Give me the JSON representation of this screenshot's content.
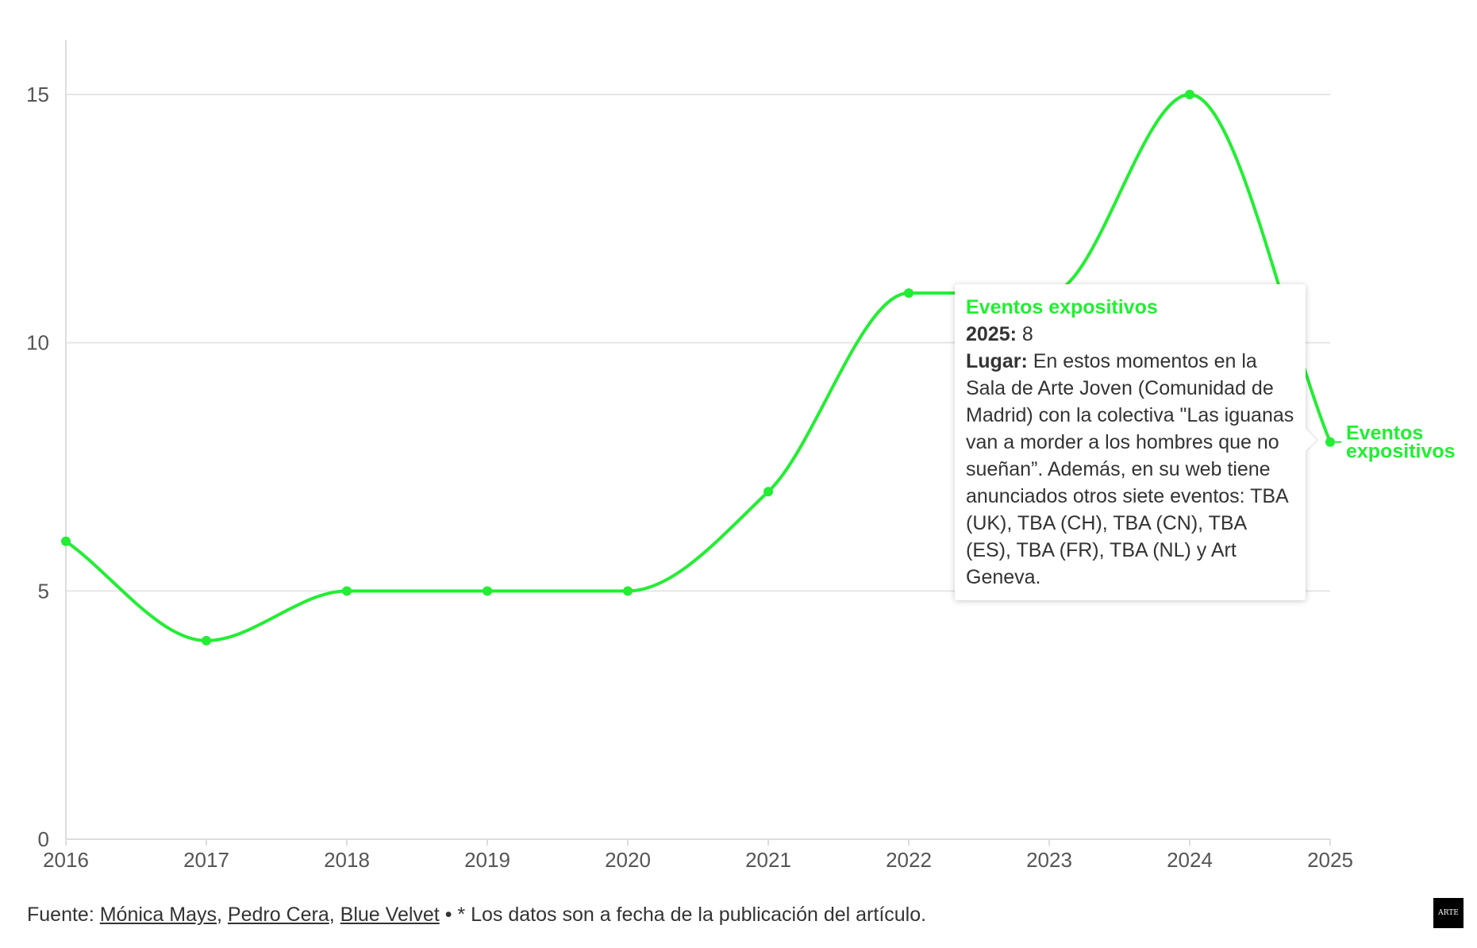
{
  "colors": {
    "series": "#22ee33",
    "grid": "#e6e6e6",
    "axis": "#dddddd",
    "text": "#333333",
    "tick_text": "#555555"
  },
  "chart_data": {
    "type": "line",
    "x": [
      "2016",
      "2017",
      "2018",
      "2019",
      "2020",
      "2021",
      "2022",
      "2023",
      "2024",
      "2025"
    ],
    "series": [
      {
        "name": "Eventos expositivos",
        "values": [
          6,
          4,
          5,
          5,
          5,
          7,
          11,
          11,
          15,
          8
        ]
      }
    ],
    "y_ticks": [
      0,
      5,
      10,
      15
    ],
    "ylim": [
      0,
      16
    ],
    "grid": true,
    "smooth": true,
    "series_label_lines": [
      "Eventos",
      "expositivos"
    ]
  },
  "tooltip": {
    "title": "Eventos expositivos",
    "year_label": "2025:",
    "year_value": "8",
    "lugar_label": "Lugar:",
    "lugar_text": "En estos momentos en la Sala de Arte Joven (Comunidad de Madrid) con la colectiva \"Las iguanas van a morder a los hombres que no sueñan”. Además, en su web tiene anunciados otros siete eventos: TBA (UK), TBA (CH), TBA (CN), TBA (ES), TBA (FR), TBA (NL) y Art Geneva."
  },
  "footer": {
    "prefix": "Fuente:",
    "source_links": [
      "Mónica Mays",
      "Pedro Cera",
      "Blue Velvet"
    ],
    "separator": ",",
    "note": "• * Los datos son a fecha de la publicación del artículo."
  },
  "logo": {
    "text": "ARTE"
  }
}
